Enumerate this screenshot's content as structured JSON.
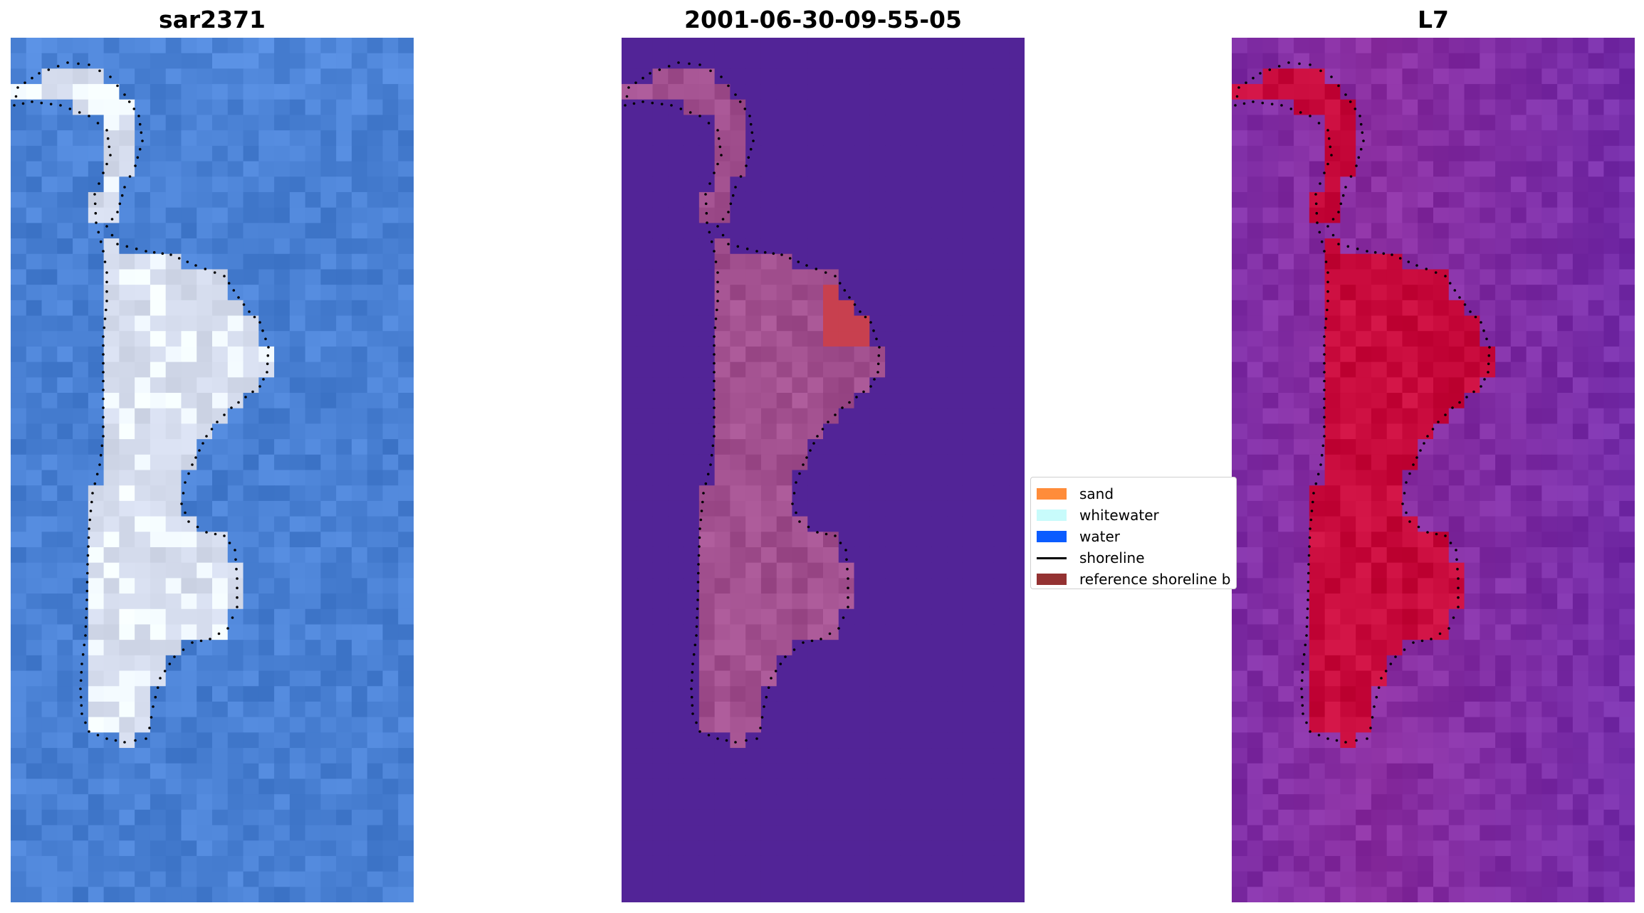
{
  "panels": [
    {
      "title": "sar2371",
      "kind": "rgb"
    },
    {
      "title": "2001-06-30-09-55-05",
      "kind": "classified"
    },
    {
      "title": "L7",
      "kind": "index"
    }
  ],
  "legend": {
    "items": [
      {
        "label": "sand",
        "color": "#ff8c3a",
        "kind": "patch"
      },
      {
        "label": "whitewater",
        "color": "#c8fbfb",
        "kind": "patch"
      },
      {
        "label": "water",
        "color": "#0b5cff",
        "kind": "patch"
      },
      {
        "label": "shoreline",
        "color": "#000000",
        "kind": "line"
      },
      {
        "label": "reference shoreline b",
        "color": "#943232",
        "kind": "patch"
      }
    ]
  },
  "colors": {
    "water_rgb": "#4f86cf",
    "land_rgb": "#d8dff0",
    "water_class": "#522497",
    "land_class": "#a2508f",
    "sand_class": "#c8404f",
    "water_index": "#8a2ea0",
    "land_index": "#c80a3c",
    "shoreline_dots": "#000000"
  }
}
